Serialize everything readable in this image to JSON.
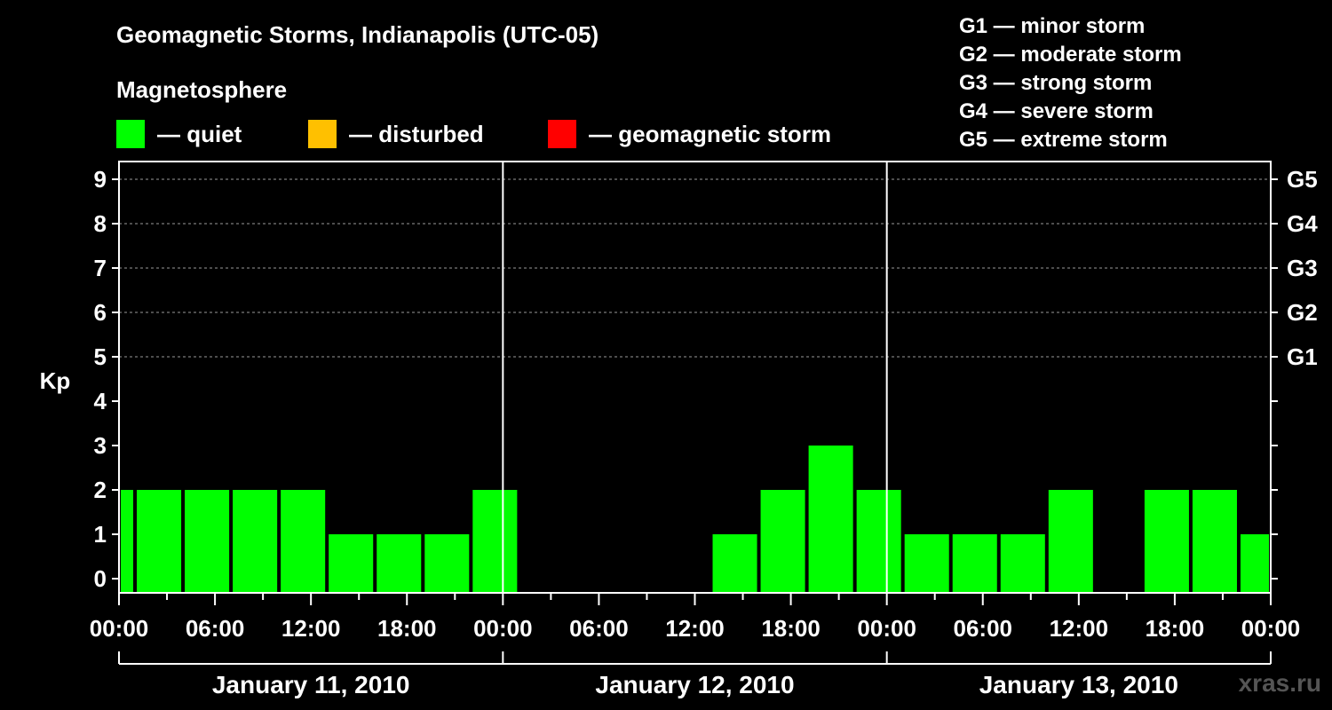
{
  "title": "Geomagnetic Storms, Indianapolis (UTC-05)",
  "subtitle": "Magnetosphere",
  "legend": [
    {
      "label": "— quiet",
      "color": "#00ff00"
    },
    {
      "label": "— disturbed",
      "color": "#ffc000"
    },
    {
      "label": "— geomagnetic storm",
      "color": "#ff0000"
    }
  ],
  "g_legend": [
    "G1 — minor storm",
    "G2 — moderate storm",
    "G3 — strong storm",
    "G4 — severe storm",
    "G5 — extreme storm"
  ],
  "watermark": "xras.ru",
  "chart_data": {
    "type": "bar",
    "ylabel": "Kp",
    "ylim": [
      0,
      9
    ],
    "y_ticks": [
      "0",
      "1",
      "2",
      "3",
      "4",
      "5",
      "6",
      "7",
      "8",
      "9"
    ],
    "right_ticks": [
      {
        "kp": 5,
        "label": "G1"
      },
      {
        "kp": 6,
        "label": "G2"
      },
      {
        "kp": 7,
        "label": "G3"
      },
      {
        "kp": 8,
        "label": "G4"
      },
      {
        "kp": 9,
        "label": "G5"
      }
    ],
    "x_range_hours": [
      0,
      72
    ],
    "x_ticks": [
      {
        "h": 0,
        "label": "00:00"
      },
      {
        "h": 6,
        "label": "06:00"
      },
      {
        "h": 12,
        "label": "12:00"
      },
      {
        "h": 18,
        "label": "18:00"
      },
      {
        "h": 24,
        "label": "00:00"
      },
      {
        "h": 30,
        "label": "06:00"
      },
      {
        "h": 36,
        "label": "12:00"
      },
      {
        "h": 42,
        "label": "18:00"
      },
      {
        "h": 48,
        "label": "00:00"
      },
      {
        "h": 54,
        "label": "06:00"
      },
      {
        "h": 60,
        "label": "12:00"
      },
      {
        "h": 66,
        "label": "18:00"
      },
      {
        "h": 72,
        "label": "00:00"
      }
    ],
    "days": [
      {
        "label": "January 11, 2010",
        "start_h": 0,
        "end_h": 24
      },
      {
        "label": "January 12, 2010",
        "start_h": 24,
        "end_h": 48
      },
      {
        "label": "January 13, 2010",
        "start_h": 48,
        "end_h": 72
      }
    ],
    "bars": [
      {
        "start_h": 0,
        "end_h": 1,
        "kp": 2
      },
      {
        "start_h": 1,
        "end_h": 4,
        "kp": 2
      },
      {
        "start_h": 4,
        "end_h": 7,
        "kp": 2
      },
      {
        "start_h": 7,
        "end_h": 10,
        "kp": 2
      },
      {
        "start_h": 10,
        "end_h": 13,
        "kp": 2
      },
      {
        "start_h": 13,
        "end_h": 16,
        "kp": 1
      },
      {
        "start_h": 16,
        "end_h": 19,
        "kp": 1
      },
      {
        "start_h": 19,
        "end_h": 22,
        "kp": 1
      },
      {
        "start_h": 22,
        "end_h": 25,
        "kp": 2
      },
      {
        "start_h": 37,
        "end_h": 40,
        "kp": 1
      },
      {
        "start_h": 40,
        "end_h": 43,
        "kp": 2
      },
      {
        "start_h": 43,
        "end_h": 46,
        "kp": 3
      },
      {
        "start_h": 46,
        "end_h": 49,
        "kp": 2
      },
      {
        "start_h": 49,
        "end_h": 52,
        "kp": 1
      },
      {
        "start_h": 52,
        "end_h": 55,
        "kp": 1
      },
      {
        "start_h": 55,
        "end_h": 58,
        "kp": 1
      },
      {
        "start_h": 58,
        "end_h": 61,
        "kp": 2
      },
      {
        "start_h": 64,
        "end_h": 67,
        "kp": 2
      },
      {
        "start_h": 67,
        "end_h": 70,
        "kp": 2
      },
      {
        "start_h": 70,
        "end_h": 72,
        "kp": 1
      }
    ],
    "bar_color": "#00ff00",
    "grid": true
  }
}
